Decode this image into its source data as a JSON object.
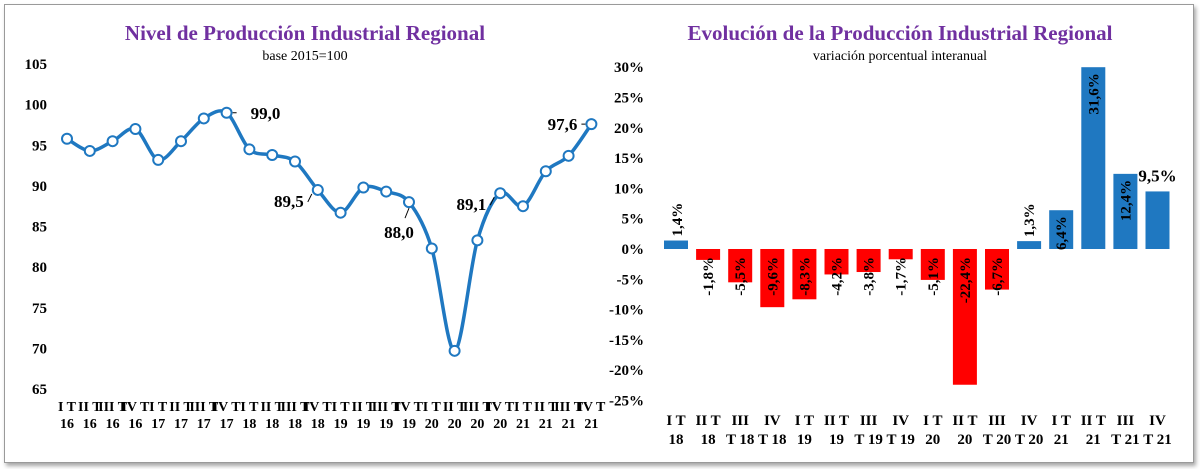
{
  "chart_data": [
    {
      "type": "line",
      "title": "Nivel de Producción Industrial Regional",
      "subtitle": "base 2015=100",
      "ylim": [
        65,
        105
      ],
      "yticks": [
        "65",
        "70",
        "75",
        "80",
        "85",
        "90",
        "95",
        "100",
        "105"
      ],
      "categories": [
        [
          "I T",
          "16"
        ],
        [
          "II T",
          "16"
        ],
        [
          "III T",
          "16"
        ],
        [
          "IV T",
          "16"
        ],
        [
          "I T",
          "17"
        ],
        [
          "II T",
          "17"
        ],
        [
          "III T",
          "17"
        ],
        [
          "IV T",
          "17"
        ],
        [
          "I T",
          "18"
        ],
        [
          "II T",
          "18"
        ],
        [
          "III T",
          "18"
        ],
        [
          "IV T",
          "18"
        ],
        [
          "I T",
          "19"
        ],
        [
          "II T",
          "19"
        ],
        [
          "III T",
          "19"
        ],
        [
          "IV T",
          "19"
        ],
        [
          "I T",
          "20"
        ],
        [
          "II T",
          "20"
        ],
        [
          "III T",
          "20"
        ],
        [
          "IV T",
          "20"
        ],
        [
          "I T",
          "21"
        ],
        [
          "II T",
          "21"
        ],
        [
          "III T",
          "21"
        ],
        [
          "IV T",
          "21"
        ]
      ],
      "values": [
        95.8,
        94.3,
        95.5,
        97.0,
        93.2,
        95.5,
        98.3,
        99.0,
        94.5,
        93.8,
        93.0,
        89.5,
        86.7,
        89.8,
        89.3,
        88.0,
        82.3,
        69.7,
        83.3,
        89.1,
        87.5,
        91.8,
        93.7,
        97.6
      ],
      "annotations": [
        {
          "index": 7,
          "text": "99,0"
        },
        {
          "index": 11,
          "text": "89,5"
        },
        {
          "index": 15,
          "text": "88,0"
        },
        {
          "index": 19,
          "text": "89,1"
        },
        {
          "index": 23,
          "text": "97,6"
        }
      ],
      "color": "#1f78c1"
    },
    {
      "type": "bar",
      "title": "Evolución de la Producción Industrial Regional",
      "subtitle": "variación porcentual interanual",
      "ylim": [
        -25,
        30
      ],
      "yticks": [
        "-25%",
        "-20%",
        "-15%",
        "-10%",
        "-5%",
        "0%",
        "5%",
        "10%",
        "15%",
        "20%",
        "25%",
        "30%"
      ],
      "categories": [
        [
          "I T",
          "18"
        ],
        [
          "II T",
          "18"
        ],
        [
          "III",
          "T 18"
        ],
        [
          "IV",
          "T 18"
        ],
        [
          "I T",
          "19"
        ],
        [
          "II T",
          "19"
        ],
        [
          "III",
          "T 19"
        ],
        [
          "IV",
          "T 19"
        ],
        [
          "I T",
          "20"
        ],
        [
          "II T",
          "20"
        ],
        [
          "III",
          "T 20"
        ],
        [
          "IV",
          "T 20"
        ],
        [
          "I T",
          "21"
        ],
        [
          "II T",
          "21"
        ],
        [
          "III",
          "T 21"
        ],
        [
          "IV",
          "T 21"
        ]
      ],
      "values": [
        1.4,
        -1.8,
        -5.5,
        -9.6,
        -8.3,
        -4.2,
        -3.8,
        -1.7,
        -5.1,
        -22.4,
        -6.7,
        1.3,
        6.4,
        31.6,
        12.4,
        9.5
      ],
      "labels": [
        "1,4%",
        "-1,8%",
        "-5,5%",
        "-9,6%",
        "-8,3%",
        "-4,2%",
        "-3,8%",
        "-1,7%",
        "-5,1%",
        "-22,4%",
        "-6,7%",
        "1,3%",
        "6,4%",
        "31,6%",
        "12,4%",
        "9,5%"
      ],
      "positive_color": "#1f78c1",
      "negative_color": "#ff0000"
    }
  ]
}
